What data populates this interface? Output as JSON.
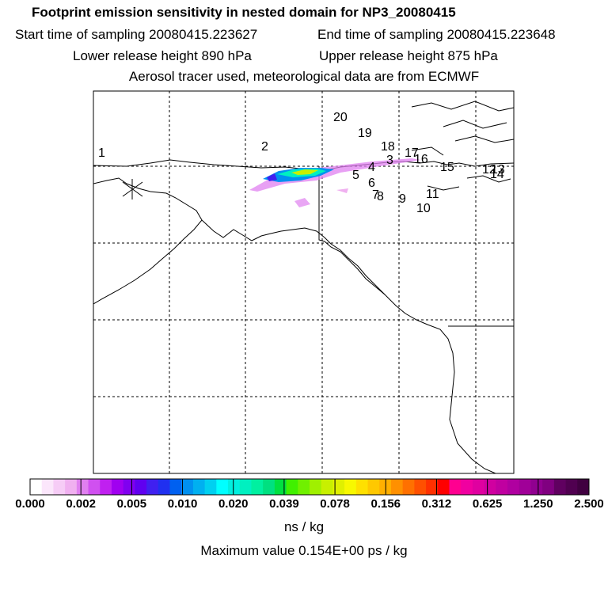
{
  "title": "Footprint emission sensitivity in nested domain for NP3_20080415",
  "sampling": {
    "start": "Start time of sampling 20080415.223627",
    "end": "End time of sampling 20080415.223648"
  },
  "release": {
    "lower": "Lower release height  890 hPa",
    "upper": "Upper release height  875 hPa"
  },
  "tracer_note": "Aerosol tracer used, meteorological data are from ECMWF",
  "colorbar": {
    "labels": [
      "0.000",
      "0.002",
      "0.005",
      "0.010",
      "0.020",
      "0.039",
      "0.078",
      "0.156",
      "0.312",
      "0.625",
      "1.250",
      "2.500"
    ],
    "colors": [
      "#ffffff",
      "#fbe6fb",
      "#f6ccf6",
      "#f0b0f0",
      "#e080f0",
      "#d050f0",
      "#c020f0",
      "#a000f0",
      "#8000f0",
      "#6000f0",
      "#4020f0",
      "#2030f0",
      "#0060f0",
      "#0090f0",
      "#00b0f0",
      "#00d0f0",
      "#00ffff",
      "#00f0e0",
      "#00f0c0",
      "#00f0a0",
      "#00e080",
      "#00e040",
      "#40f000",
      "#70f000",
      "#a0f000",
      "#c8f000",
      "#e0f000",
      "#f8f800",
      "#ffe000",
      "#ffc800",
      "#ffb000",
      "#ff9000",
      "#ff7000",
      "#ff5000",
      "#ff3000",
      "#ff0000",
      "#ff0090",
      "#f000a0",
      "#e000a0",
      "#d000a0",
      "#c000a0",
      "#b000a0",
      "#a00098",
      "#900090",
      "#800080",
      "#600060",
      "#500050",
      "#400040"
    ],
    "units": "ns / kg"
  },
  "max_value": "Maximum value  0.154E+00 ps / kg",
  "release_points": [
    "1",
    "2",
    "3",
    "4",
    "5",
    "6",
    "7",
    "8",
    "9",
    "10",
    "11",
    "12",
    "13",
    "14",
    "15",
    "16",
    "17",
    "18",
    "19",
    "20"
  ]
}
